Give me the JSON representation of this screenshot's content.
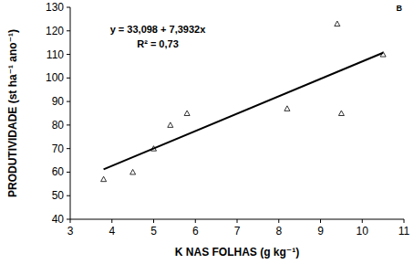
{
  "chart_data": {
    "type": "scatter",
    "title": "B",
    "x_label": "K NAS FOLHAS (g kg⁻¹)",
    "y_label": "PRODUTIVIDADE (st ha⁻¹ ano⁻¹)",
    "annotations": [
      "y = 33,098 + 7,3932x",
      "R² = 0,73"
    ],
    "series": [
      {
        "type": "scatter",
        "marker": "triangle",
        "color": "#000000",
        "x": [
          3.8,
          4.5,
          5.0,
          5.4,
          5.8,
          8.2,
          9.4,
          9.5,
          10.5
        ],
        "values": [
          57,
          60,
          70,
          80,
          85,
          87,
          123,
          85,
          110
        ]
      },
      {
        "type": "line",
        "line_style": "solid",
        "color": "#000000",
        "x": [
          3.8,
          10.5
        ],
        "values": [
          61.2,
          110.7
        ]
      }
    ],
    "xlim": [
      3,
      11
    ],
    "xticks": [
      3,
      4,
      5,
      6,
      7,
      8,
      9,
      10,
      11
    ],
    "ylim": [
      40,
      130
    ],
    "yticks": [
      40,
      50,
      60,
      70,
      80,
      90,
      100,
      110,
      120,
      130
    ],
    "grid": false
  }
}
